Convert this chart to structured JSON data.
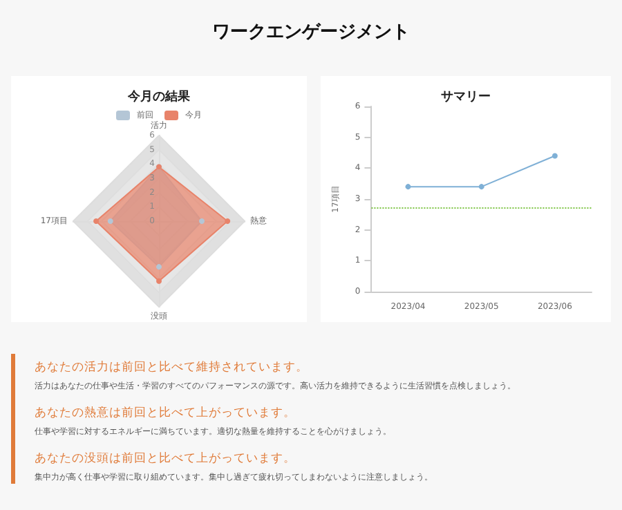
{
  "chart_data": [
    {
      "type": "other",
      "title": "ワークエンゲージメント"
    },
    {
      "type": "radar",
      "title": "今月の結果",
      "categories": [
        "活力",
        "熱意",
        "没頭",
        "17項目"
      ],
      "ylim": [
        0,
        6
      ],
      "yticks": [
        0,
        1,
        2,
        3,
        4,
        5,
        6
      ],
      "legend": "top",
      "marker": "circle",
      "series": [
        {
          "name": "前回",
          "color": "#b4c6d6",
          "values": [
            3.8,
            3.0,
            3.2,
            3.4
          ]
        },
        {
          "name": "今月",
          "color": "#e8836a",
          "values": [
            3.8,
            4.8,
            4.2,
            4.4
          ]
        }
      ]
    },
    {
      "type": "line",
      "title": "サマリー",
      "ylabel": "17項目",
      "categories": [
        "2023/04",
        "2023/05",
        "2023/06"
      ],
      "ylim": [
        0,
        6
      ],
      "yticks": [
        0,
        1,
        2,
        3,
        4,
        5,
        6
      ],
      "marker": "circle",
      "grid": false,
      "legend": false,
      "series": [
        {
          "color": "#7fb0d6",
          "values": [
            3.4,
            3.4,
            4.4
          ]
        }
      ],
      "ref_lines": [
        {
          "axis": "y",
          "value": 2.7,
          "color": "#7cc444",
          "line_style": "dotted"
        }
      ]
    },
    {
      "type": "other",
      "annotations": [
        "あなたの活力は前回と比べて維持されています。",
        "活力はあなたの仕事や生活・学習のすべてのパフォーマンスの源です。高い活力を維持できるように生活習慣を点検しましょう。",
        "あなたの熱意は前回と比べて上がっています。",
        "仕事や学習に対するエネルギーに満ちています。適切な熱量を維持することを心がけましょう。",
        "あなたの没頭は前回と比べて上がっています。",
        "集中力が高く仕事や学習に取り組めています。集中し過ぎて疲れ切ってしまわないように注意しましょう。"
      ]
    }
  ]
}
